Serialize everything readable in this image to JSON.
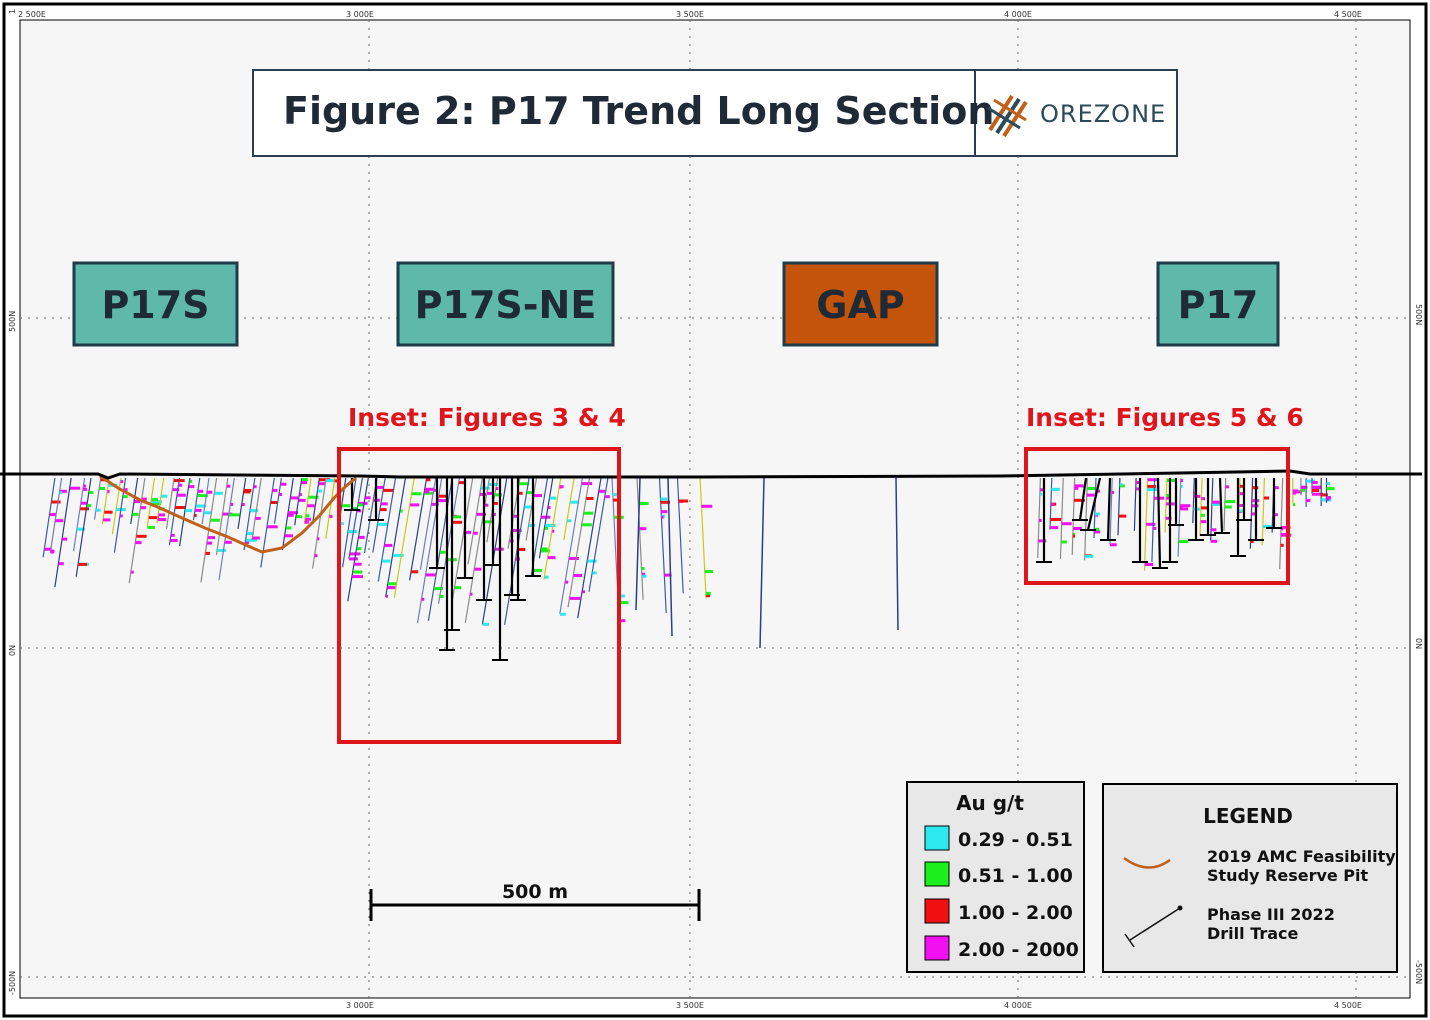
{
  "title": "Figure 2: P17 Trend Long Section",
  "logo": {
    "name": "OREZONE",
    "icon": "orezone-logo-icon"
  },
  "axes": {
    "top_ticks": [
      "2 500E",
      "3 000E",
      "3 500E",
      "4 000E",
      "4 500E"
    ],
    "bottom_ticks": [
      "3 000E",
      "3 500E",
      "4 000E",
      "4 500E"
    ],
    "left_ticks": [
      "500N",
      "0N",
      "-500N"
    ],
    "right_ticks": [
      "500N",
      "0N",
      "-500N"
    ],
    "corner_mark": "1"
  },
  "zones": [
    {
      "label": "P17S",
      "fill": "#5fb9ab"
    },
    {
      "label": "P17S-NE",
      "fill": "#5fb9ab"
    },
    {
      "label": "GAP",
      "fill": "#c3540a"
    },
    {
      "label": "P17",
      "fill": "#5fb9ab"
    }
  ],
  "insets": [
    {
      "label": "Inset: Figures 3 & 4"
    },
    {
      "label": "Inset: Figures 5 & 6"
    }
  ],
  "scale_bar": {
    "label": "500 m"
  },
  "au_legend": {
    "title": "Au g/t",
    "items": [
      {
        "label": "0.29 - 0.51",
        "color": "#2ee8f0"
      },
      {
        "label": "0.51 - 1.00",
        "color": "#1cf01c"
      },
      {
        "label": "1.00 - 2.00",
        "color": "#f01010"
      },
      {
        "label": "2.00 - 2000",
        "color": "#f010f0"
      }
    ]
  },
  "legend": {
    "title": "LEGEND",
    "pit": {
      "line1": "2019 AMC Feasibility",
      "line2": "Study Reserve Pit",
      "color": "#c0601a"
    },
    "drill": {
      "line1": "Phase III 2022",
      "line2": "Drill Trace"
    }
  },
  "colors": {
    "inset_border": "#e0141b",
    "topography": "#000000",
    "frame": "#000000"
  }
}
